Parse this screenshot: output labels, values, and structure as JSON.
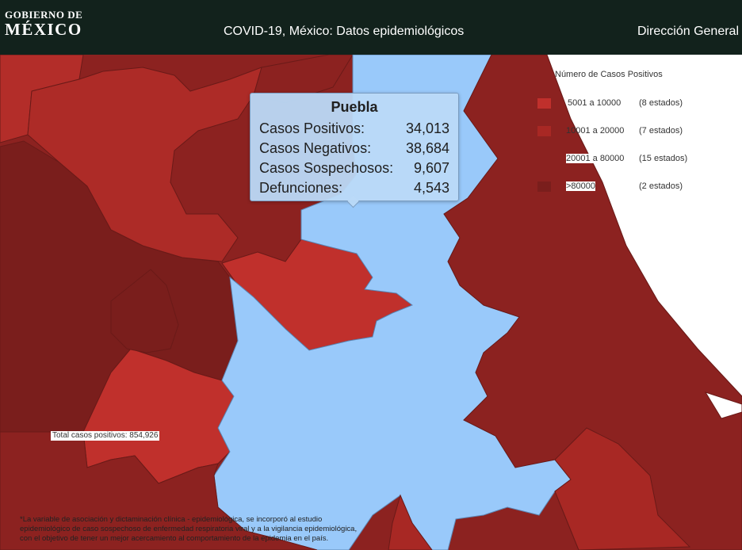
{
  "header": {
    "logo_line1": "GOBIERNO DE",
    "logo_line2": "MÉXICO",
    "title": "COVID-19, México: Datos epidemiológicos",
    "nav_link": "Dirección General"
  },
  "legend": {
    "title": "Número de Casos Positivos",
    "items": [
      {
        "range": "5001 a  10000",
        "count": "(8 estados)",
        "color": "#c0302c"
      },
      {
        "range": "10001 a  20000",
        "count": "(7 estados)",
        "color": "#a82824"
      },
      {
        "range": "20001 a  80000",
        "count": "(15 estados)",
        "color": "#8c2220"
      },
      {
        "range": ">80000",
        "count": "(2 estados)",
        "color": "#7a1e1c"
      }
    ]
  },
  "tooltip": {
    "state": "Puebla",
    "rows": [
      {
        "label": "Casos Positivos:",
        "value": "34,013"
      },
      {
        "label": "Casos Negativos:",
        "value": "38,684"
      },
      {
        "label": "Casos Sospechosos:",
        "value": "9,607"
      },
      {
        "label": "Defunciones:",
        "value": "4,543"
      }
    ]
  },
  "total_label": "Total casos positivos: 854,926",
  "footnote": [
    "*La variable de asociación y dictaminación clínica - epidemiológica, se incorporó al estudio",
    "epidemiológico de caso sospechoso de enfermedad respiratoria viral y a la vigilancia epidemiológica,",
    "con el objetivo de tener un mejor acercamiento al comportamiento de la epidemia en el país."
  ],
  "colors": {
    "header_bg": "#12221c",
    "selected_state": "#99c9fa",
    "state_dark": "#7a1e1c",
    "state_mid": "#8c2220",
    "state_red": "#c0302c"
  }
}
